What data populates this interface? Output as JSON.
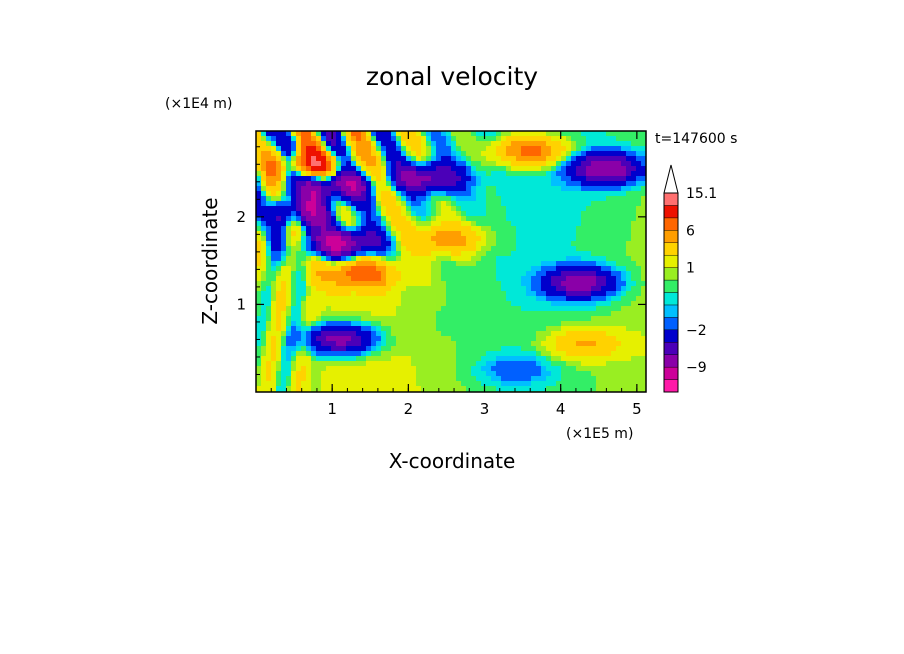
{
  "chart_data": {
    "type": "heatmap",
    "title": "zonal velocity",
    "xlabel": "X-coordinate",
    "ylabel": "Z-coordinate",
    "x_unit": "(×1E5 m)",
    "y_unit": "(×1E4 m)",
    "time_label": "t=147600 s",
    "xlim": [
      0,
      5.12
    ],
    "ylim": [
      0,
      2.98
    ],
    "x_ticks": [
      "1",
      "2",
      "3",
      "4",
      "5"
    ],
    "y_ticks": [
      "1",
      "2"
    ],
    "colorbar": {
      "levels": [
        -15,
        -12,
        -9,
        -6,
        -4,
        -2,
        -1,
        -0.5,
        0,
        0.5,
        1,
        2,
        4,
        6,
        9,
        12,
        15.1
      ],
      "colors": [
        "#ff1aa8",
        "#cc0099",
        "#8a00a8",
        "#4b00b8",
        "#0000cc",
        "#0060ff",
        "#00bfff",
        "#00e8d8",
        "#33ee66",
        "#99ee22",
        "#e6f000",
        "#ffd200",
        "#ff9e00",
        "#ff6600",
        "#ee1100",
        "#ff7070",
        "#ffb6b6"
      ],
      "labels": [
        {
          "text": "15.1",
          "value": 15.1
        },
        {
          "text": "6",
          "value": 6
        },
        {
          "text": "1",
          "value": 1
        },
        {
          "text": "−2",
          "value": -2
        },
        {
          "text": "−9",
          "value": -9
        }
      ]
    },
    "features": [
      {
        "x": 1.0,
        "z": 2.35,
        "u": -10
      },
      {
        "x": 0.65,
        "z": 2.05,
        "u": -7
      },
      {
        "x": 1.15,
        "z": 1.7,
        "u": -11
      },
      {
        "x": 1.35,
        "z": 1.35,
        "u": 7
      },
      {
        "x": 0.7,
        "z": 2.6,
        "u": 8
      },
      {
        "x": 1.1,
        "z": 0.6,
        "u": -8
      },
      {
        "x": 4.25,
        "z": 1.25,
        "u": -8
      },
      {
        "x": 4.6,
        "z": 2.55,
        "u": -9
      },
      {
        "x": 2.25,
        "z": 2.45,
        "u": -8
      },
      {
        "x": 3.6,
        "z": 2.75,
        "u": 7
      },
      {
        "x": 2.5,
        "z": 1.75,
        "u": 5
      },
      {
        "x": 4.3,
        "z": 0.55,
        "u": 4
      },
      {
        "x": 3.4,
        "z": 0.25,
        "u": -2
      },
      {
        "x": 2.6,
        "z": 0.8,
        "u": -0.3
      }
    ]
  }
}
